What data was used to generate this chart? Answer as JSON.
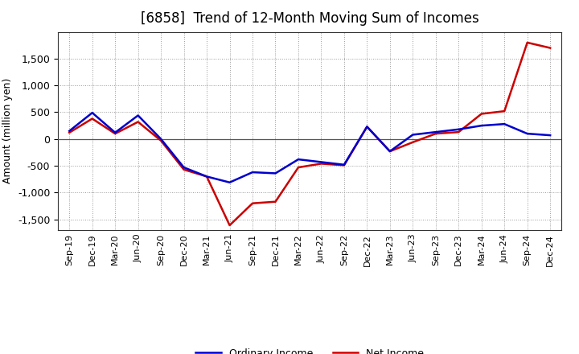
{
  "title": "[6858]  Trend of 12-Month Moving Sum of Incomes",
  "ylabel": "Amount (million yen)",
  "x_labels": [
    "Sep-19",
    "Dec-19",
    "Mar-20",
    "Jun-20",
    "Sep-20",
    "Dec-20",
    "Mar-21",
    "Jun-21",
    "Sep-21",
    "Dec-21",
    "Mar-22",
    "Jun-22",
    "Sep-22",
    "Dec-22",
    "Mar-23",
    "Jun-23",
    "Sep-23",
    "Dec-23",
    "Mar-24",
    "Jun-24",
    "Sep-24",
    "Dec-24"
  ],
  "ordinary_income": [
    150,
    490,
    120,
    440,
    0,
    -530,
    -700,
    -810,
    -620,
    -640,
    -380,
    -430,
    -480,
    230,
    -230,
    80,
    130,
    180,
    250,
    280,
    100,
    70
  ],
  "net_income": [
    120,
    380,
    100,
    320,
    -30,
    -570,
    -700,
    -1610,
    -1200,
    -1170,
    -530,
    -460,
    -490,
    230,
    -230,
    -60,
    100,
    130,
    470,
    520,
    1800,
    1700
  ],
  "ordinary_color": "#0000cc",
  "net_color": "#cc0000",
  "ylim": [
    -1700,
    2000
  ],
  "yticks": [
    -1500,
    -1000,
    -500,
    0,
    500,
    1000,
    1500
  ],
  "background_color": "#ffffff",
  "grid_color": "#999999",
  "title_fontsize": 12,
  "axis_facecolor": "#ffffff",
  "legend_labels": [
    "Ordinary Income",
    "Net Income"
  ]
}
